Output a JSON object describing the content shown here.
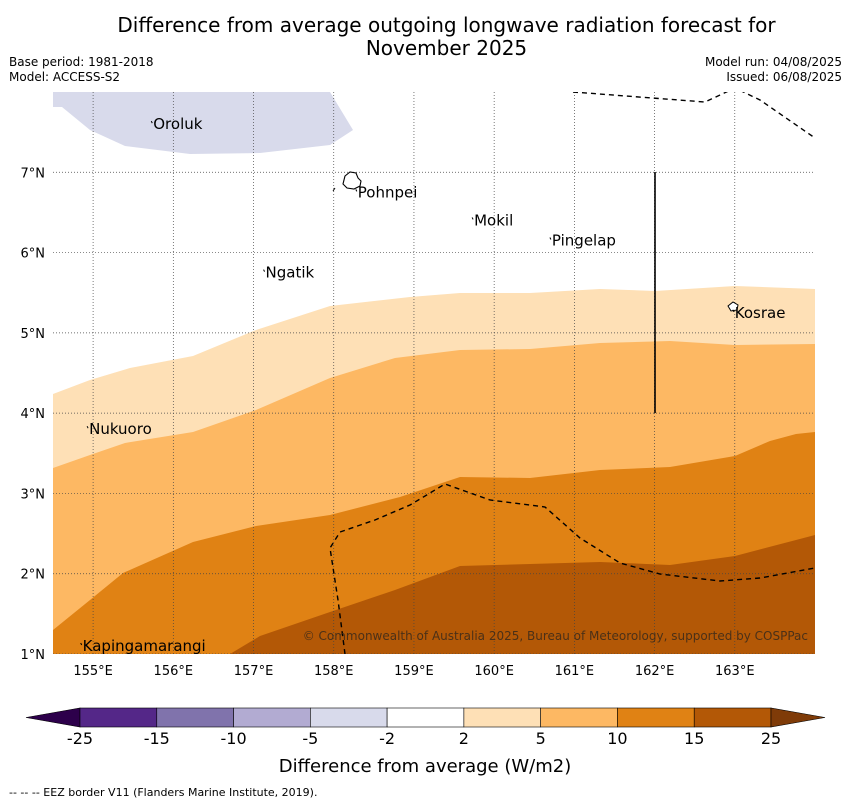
{
  "title_line1": "Difference from average outgoing longwave radiation forecast for",
  "title_line2": "November 2025",
  "meta": {
    "base_period": "Base period: 1981-2018",
    "model": "Model: ACCESS-S2",
    "model_run": "Model run: 04/08/2025",
    "issued": "Issued: 06/08/2025"
  },
  "map": {
    "lon_range": [
      154.5,
      164.0
    ],
    "lat_range": [
      1.0,
      8.0
    ],
    "lon_ticks": [
      155,
      156,
      157,
      158,
      159,
      160,
      161,
      162,
      163
    ],
    "lon_tick_labels": [
      "155°E",
      "156°E",
      "157°E",
      "158°E",
      "159°E",
      "160°E",
      "161°E",
      "162°E",
      "163°E"
    ],
    "lat_ticks": [
      1,
      2,
      3,
      4,
      5,
      6,
      7
    ],
    "lat_tick_labels": [
      "1°N",
      "2°N",
      "3°N",
      "4°N",
      "5°N",
      "6°N",
      "7°N"
    ],
    "places": [
      {
        "name": "Oroluk",
        "lon": 155.75,
        "lat": 7.6
      },
      {
        "name": "Pohnpei",
        "lon": 158.3,
        "lat": 6.75
      },
      {
        "name": "Mokil",
        "lon": 159.75,
        "lat": 6.4
      },
      {
        "name": "Pingelap",
        "lon": 160.72,
        "lat": 6.15
      },
      {
        "name": "Ngatik",
        "lon": 157.15,
        "lat": 5.75
      },
      {
        "name": "Kosrae",
        "lon": 163.0,
        "lat": 5.25
      },
      {
        "name": "Nukuoro",
        "lon": 154.95,
        "lat": 3.8
      },
      {
        "name": "Kapingamarangi",
        "lon": 154.87,
        "lat": 1.1
      }
    ],
    "copyright": "© Commonwealth of Australia 2025, Bureau of Meteorology, supported by COSPPac"
  },
  "colorbar": {
    "ticks": [
      "-25",
      "-15",
      "-10",
      "-5",
      "-2",
      "2",
      "5",
      "10",
      "15",
      "25"
    ],
    "colors": [
      "#542788",
      "#8073ac",
      "#b2abd2",
      "#d8daeb",
      "#ffffff",
      "#fee0b6",
      "#fdb863",
      "#e08214",
      "#b35806"
    ],
    "under_color": "#2d004b",
    "over_color": "#7f3b08",
    "label": "Difference from average (W/m2)"
  },
  "footer": "--  --  -- EEZ border V11 (Flanders Marine Institute, 2019)."
}
